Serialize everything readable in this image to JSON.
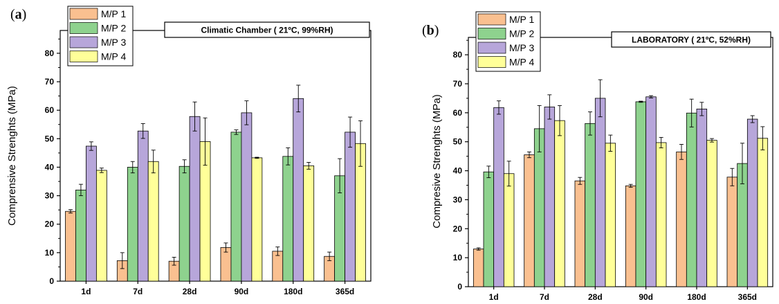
{
  "colors": {
    "series": [
      "#FAC090",
      "#8ED28E",
      "#B7A6DA",
      "#FFFF99"
    ],
    "stroke": "#000000"
  },
  "chart_data": [
    {
      "panel_label_open": "(",
      "panel_label_letter": "a",
      "panel_label_close": ")",
      "type": "bar",
      "condition_text": "Climatic Chamber ( 21ºC, 99%RH)",
      "ylabel": "Comprensive Strenghts (MPa)",
      "xlabel": "",
      "ylim": [
        0,
        88
      ],
      "yticks": [
        0,
        10,
        20,
        30,
        40,
        50,
        60,
        70,
        80
      ],
      "categories": [
        "1d",
        "7d",
        "28d",
        "90d",
        "180d",
        "365d"
      ],
      "legend_position": "top-left",
      "series": [
        {
          "name": "M/P 1",
          "values": [
            24.5,
            7.2,
            7.0,
            11.8,
            10.5,
            8.7
          ],
          "errors": [
            0.6,
            2.8,
            1.4,
            1.6,
            1.5,
            1.5
          ]
        },
        {
          "name": "M/P 2",
          "values": [
            32.0,
            40.0,
            40.3,
            52.3,
            43.8,
            37.0
          ],
          "errors": [
            2.0,
            2.0,
            2.3,
            0.8,
            3.0,
            6.0
          ]
        },
        {
          "name": "M/P 3",
          "values": [
            47.4,
            52.7,
            57.8,
            59.1,
            64.1,
            52.3
          ],
          "errors": [
            1.5,
            2.6,
            5.1,
            4.2,
            4.7,
            5.3
          ]
        },
        {
          "name": "M/P 4",
          "values": [
            38.9,
            42.0,
            49.0,
            43.3,
            40.5,
            48.3
          ],
          "errors": [
            0.8,
            4.0,
            8.3,
            0.2,
            1.2,
            8.0
          ]
        }
      ]
    },
    {
      "panel_label_open": "(",
      "panel_label_letter": "b",
      "panel_label_close": ")",
      "type": "bar",
      "condition_text": "LABORATORY ( 21ºC, 52%RH)",
      "ylabel": "Compresive Strenghts (MPa)",
      "xlabel": "",
      "ylim": [
        0,
        86
      ],
      "yticks": [
        0,
        10,
        20,
        30,
        40,
        50,
        60,
        70,
        80
      ],
      "categories": [
        "1d",
        "7d",
        "28d",
        "90d",
        "180d",
        "365d"
      ],
      "legend_position": "top-left",
      "series": [
        {
          "name": "M/P 1",
          "values": [
            13.0,
            45.5,
            36.5,
            34.8,
            46.5,
            37.8
          ],
          "errors": [
            0.4,
            1.0,
            1.2,
            0.5,
            2.6,
            3.0
          ]
        },
        {
          "name": "M/P 2",
          "values": [
            39.6,
            54.5,
            56.3,
            63.8,
            59.9,
            42.5
          ],
          "errors": [
            2.0,
            8.0,
            4.0,
            0.2,
            4.8,
            7.0
          ]
        },
        {
          "name": "M/P 3",
          "values": [
            61.8,
            62.0,
            65.0,
            65.5,
            61.3,
            57.8
          ],
          "errors": [
            2.3,
            4.2,
            6.4,
            0.4,
            2.3,
            1.2
          ]
        },
        {
          "name": "M/P 4",
          "values": [
            39.0,
            57.3,
            49.5,
            49.7,
            50.5,
            51.2
          ],
          "errors": [
            4.3,
            5.2,
            2.8,
            1.8,
            0.6,
            4.0
          ]
        }
      ]
    }
  ]
}
